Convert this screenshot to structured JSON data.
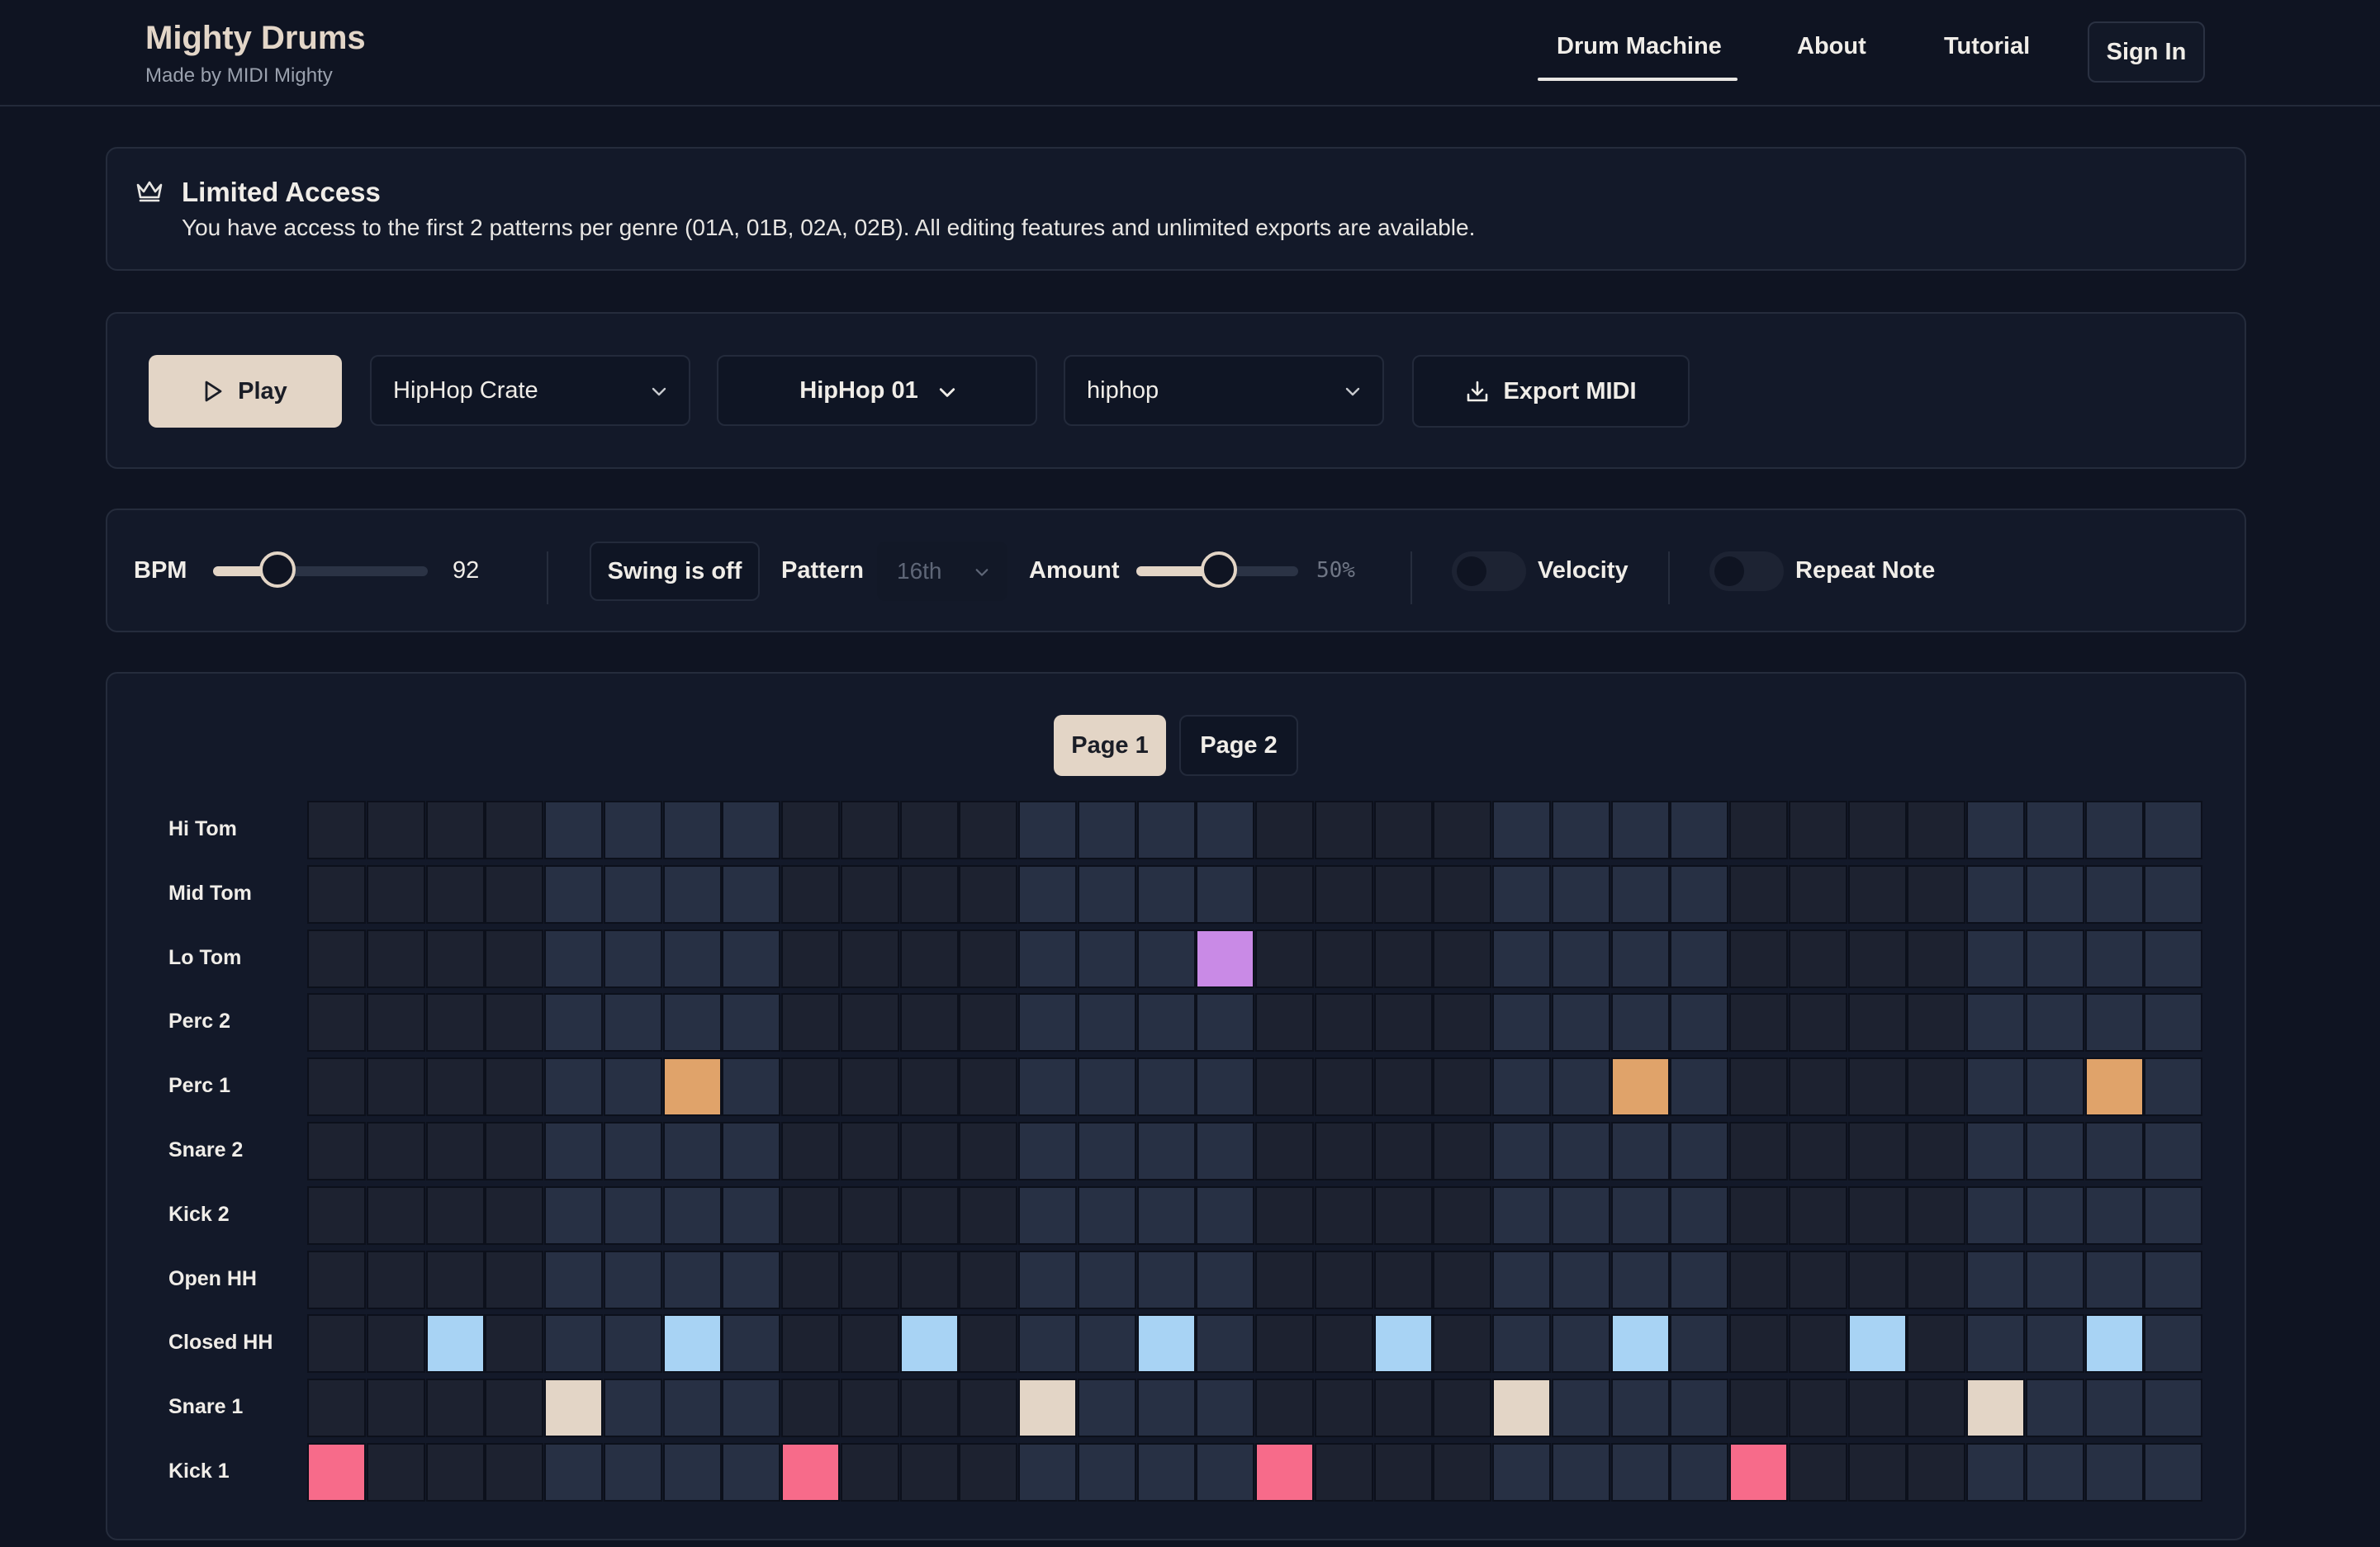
{
  "header": {
    "title": "Mighty Drums",
    "subtitle": "Made by MIDI Mighty",
    "nav": [
      {
        "label": "Drum Machine",
        "active": true
      },
      {
        "label": "About",
        "active": false
      },
      {
        "label": "Tutorial",
        "active": false
      }
    ],
    "sign_in": "Sign In"
  },
  "notice": {
    "icon": "crown-icon",
    "title": "Limited Access",
    "text": "You have access to the first 2 patterns per genre (01A, 01B, 02A, 02B). All editing features and unlimited exports are available."
  },
  "controls": {
    "play_label": "Play",
    "kit_select": "HipHop Crate",
    "pattern_select": "HipHop 01",
    "genre_select": "hiphop",
    "export_label": "Export MIDI"
  },
  "settings": {
    "bpm_label": "BPM",
    "bpm_value": "92",
    "bpm_fraction": 0.3,
    "swing_button": "Swing is off",
    "pattern_label": "Pattern",
    "pattern_value": "16th",
    "amount_label": "Amount",
    "amount_value": "50%",
    "amount_fraction": 0.5,
    "velocity_label": "Velocity",
    "velocity_on": false,
    "repeat_label": "Repeat Note",
    "repeat_on": false
  },
  "sequencer": {
    "pages": [
      {
        "label": "Page 1",
        "active": true
      },
      {
        "label": "Page 2",
        "active": false
      }
    ],
    "steps": 32,
    "rows": [
      {
        "name": "Hi Tom",
        "color": "#c98ae6",
        "active": []
      },
      {
        "name": "Mid Tom",
        "color": "#c98ae6",
        "active": []
      },
      {
        "name": "Lo Tom",
        "color": "#c98ae6",
        "active": [
          15
        ]
      },
      {
        "name": "Perc 2",
        "color": "#e0a36a",
        "active": []
      },
      {
        "name": "Perc 1",
        "color": "#e0a36a",
        "active": [
          6,
          22,
          30
        ]
      },
      {
        "name": "Snare 2",
        "color": "#e3d5c6",
        "active": []
      },
      {
        "name": "Kick 2",
        "color": "#f76b8a",
        "active": []
      },
      {
        "name": "Open HH",
        "color": "#a8d3f4",
        "active": []
      },
      {
        "name": "Closed HH",
        "color": "#a8d3f4",
        "active": [
          2,
          6,
          10,
          14,
          18,
          22,
          26,
          30
        ]
      },
      {
        "name": "Snare 1",
        "color": "#e3d5c6",
        "active": [
          4,
          12,
          20,
          28
        ]
      },
      {
        "name": "Kick 1",
        "color": "#f76b8a",
        "active": [
          0,
          8,
          16,
          24
        ]
      }
    ]
  }
}
